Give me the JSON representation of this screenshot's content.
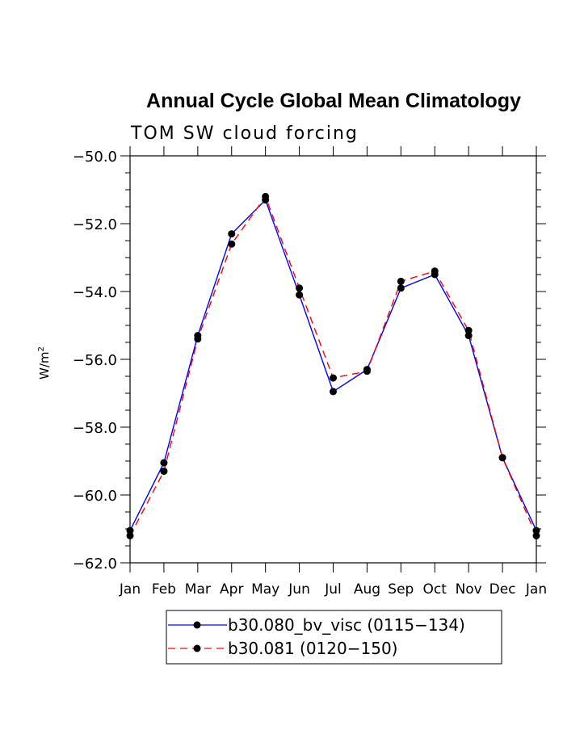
{
  "chart_data": {
    "type": "line",
    "title": "Annual Cycle Global Mean Climatology",
    "subtitle": "TOM SW cloud forcing",
    "ylabel": "W/m",
    "ylabel_superscript": "2",
    "xlabel": "",
    "categories": [
      "Jan",
      "Feb",
      "Mar",
      "Apr",
      "May",
      "Jun",
      "Jul",
      "Aug",
      "Sep",
      "Oct",
      "Nov",
      "Dec",
      "Jan"
    ],
    "ylim": [
      -62.0,
      -50.0
    ],
    "yticks": [
      -50.0,
      -52.0,
      -54.0,
      -56.0,
      -58.0,
      -60.0,
      -62.0
    ],
    "ytick_labels": [
      "−50.0",
      "−52.0",
      "−54.0",
      "−56.0",
      "−58.0",
      "−60.0",
      "−62.0"
    ],
    "grid": false,
    "legend_position": "bottom",
    "series": [
      {
        "name": "b30.080_bv_visc (0115−134)",
        "color": "#0000ff",
        "style": "solid",
        "values": [
          -61.05,
          -59.05,
          -55.3,
          -52.3,
          -51.3,
          -54.1,
          -56.95,
          -56.3,
          -53.9,
          -53.5,
          -55.3,
          -58.9,
          -61.05
        ]
      },
      {
        "name": "b30.081 (0120−150)",
        "color": "#ff0000",
        "style": "dashed",
        "values": [
          -61.2,
          -59.3,
          -55.4,
          -52.6,
          -51.2,
          -53.9,
          -56.55,
          -56.35,
          -53.7,
          -53.4,
          -55.15,
          -58.9,
          -61.2
        ]
      }
    ]
  }
}
